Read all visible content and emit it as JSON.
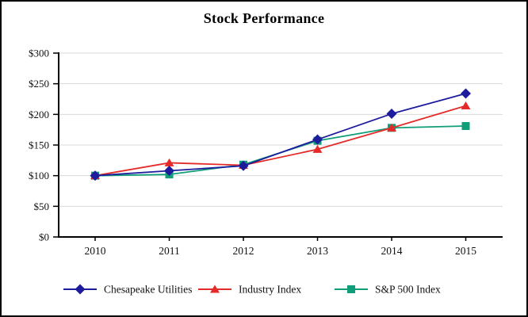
{
  "chart_data": {
    "type": "line",
    "title": "Stock Performance",
    "x": [
      "2010",
      "2011",
      "2012",
      "2013",
      "2014",
      "2015"
    ],
    "series": [
      {
        "name": "Chesapeake Utilities",
        "marker": "diamond",
        "color": "#1c1c9c",
        "values": [
          100,
          108,
          116,
          159,
          201,
          234
        ]
      },
      {
        "name": "Industry Index",
        "marker": "triangle",
        "color": "#e42b29",
        "values": [
          100,
          121,
          117,
          143,
          178,
          214
        ]
      },
      {
        "name": "S&P 500 Index",
        "marker": "square",
        "color": "#109e78",
        "values": [
          100,
          102,
          118,
          157,
          178,
          181
        ]
      }
    ],
    "ylim": [
      0,
      300
    ],
    "ytick_values": [
      0,
      50,
      100,
      150,
      200,
      250,
      300
    ],
    "ytick_labels": [
      "$0",
      "$50",
      "$100",
      "$150",
      "$200",
      "$250",
      "$300"
    ],
    "xtick_labels": [
      "2010",
      "2011",
      "2012",
      "2013",
      "2014",
      "2015"
    ],
    "grid": true,
    "legend_position": "bottom",
    "colors": {
      "grid": "#d9d9d9",
      "axis": "#000000",
      "text": "#111111",
      "background": "#ffffff"
    }
  }
}
